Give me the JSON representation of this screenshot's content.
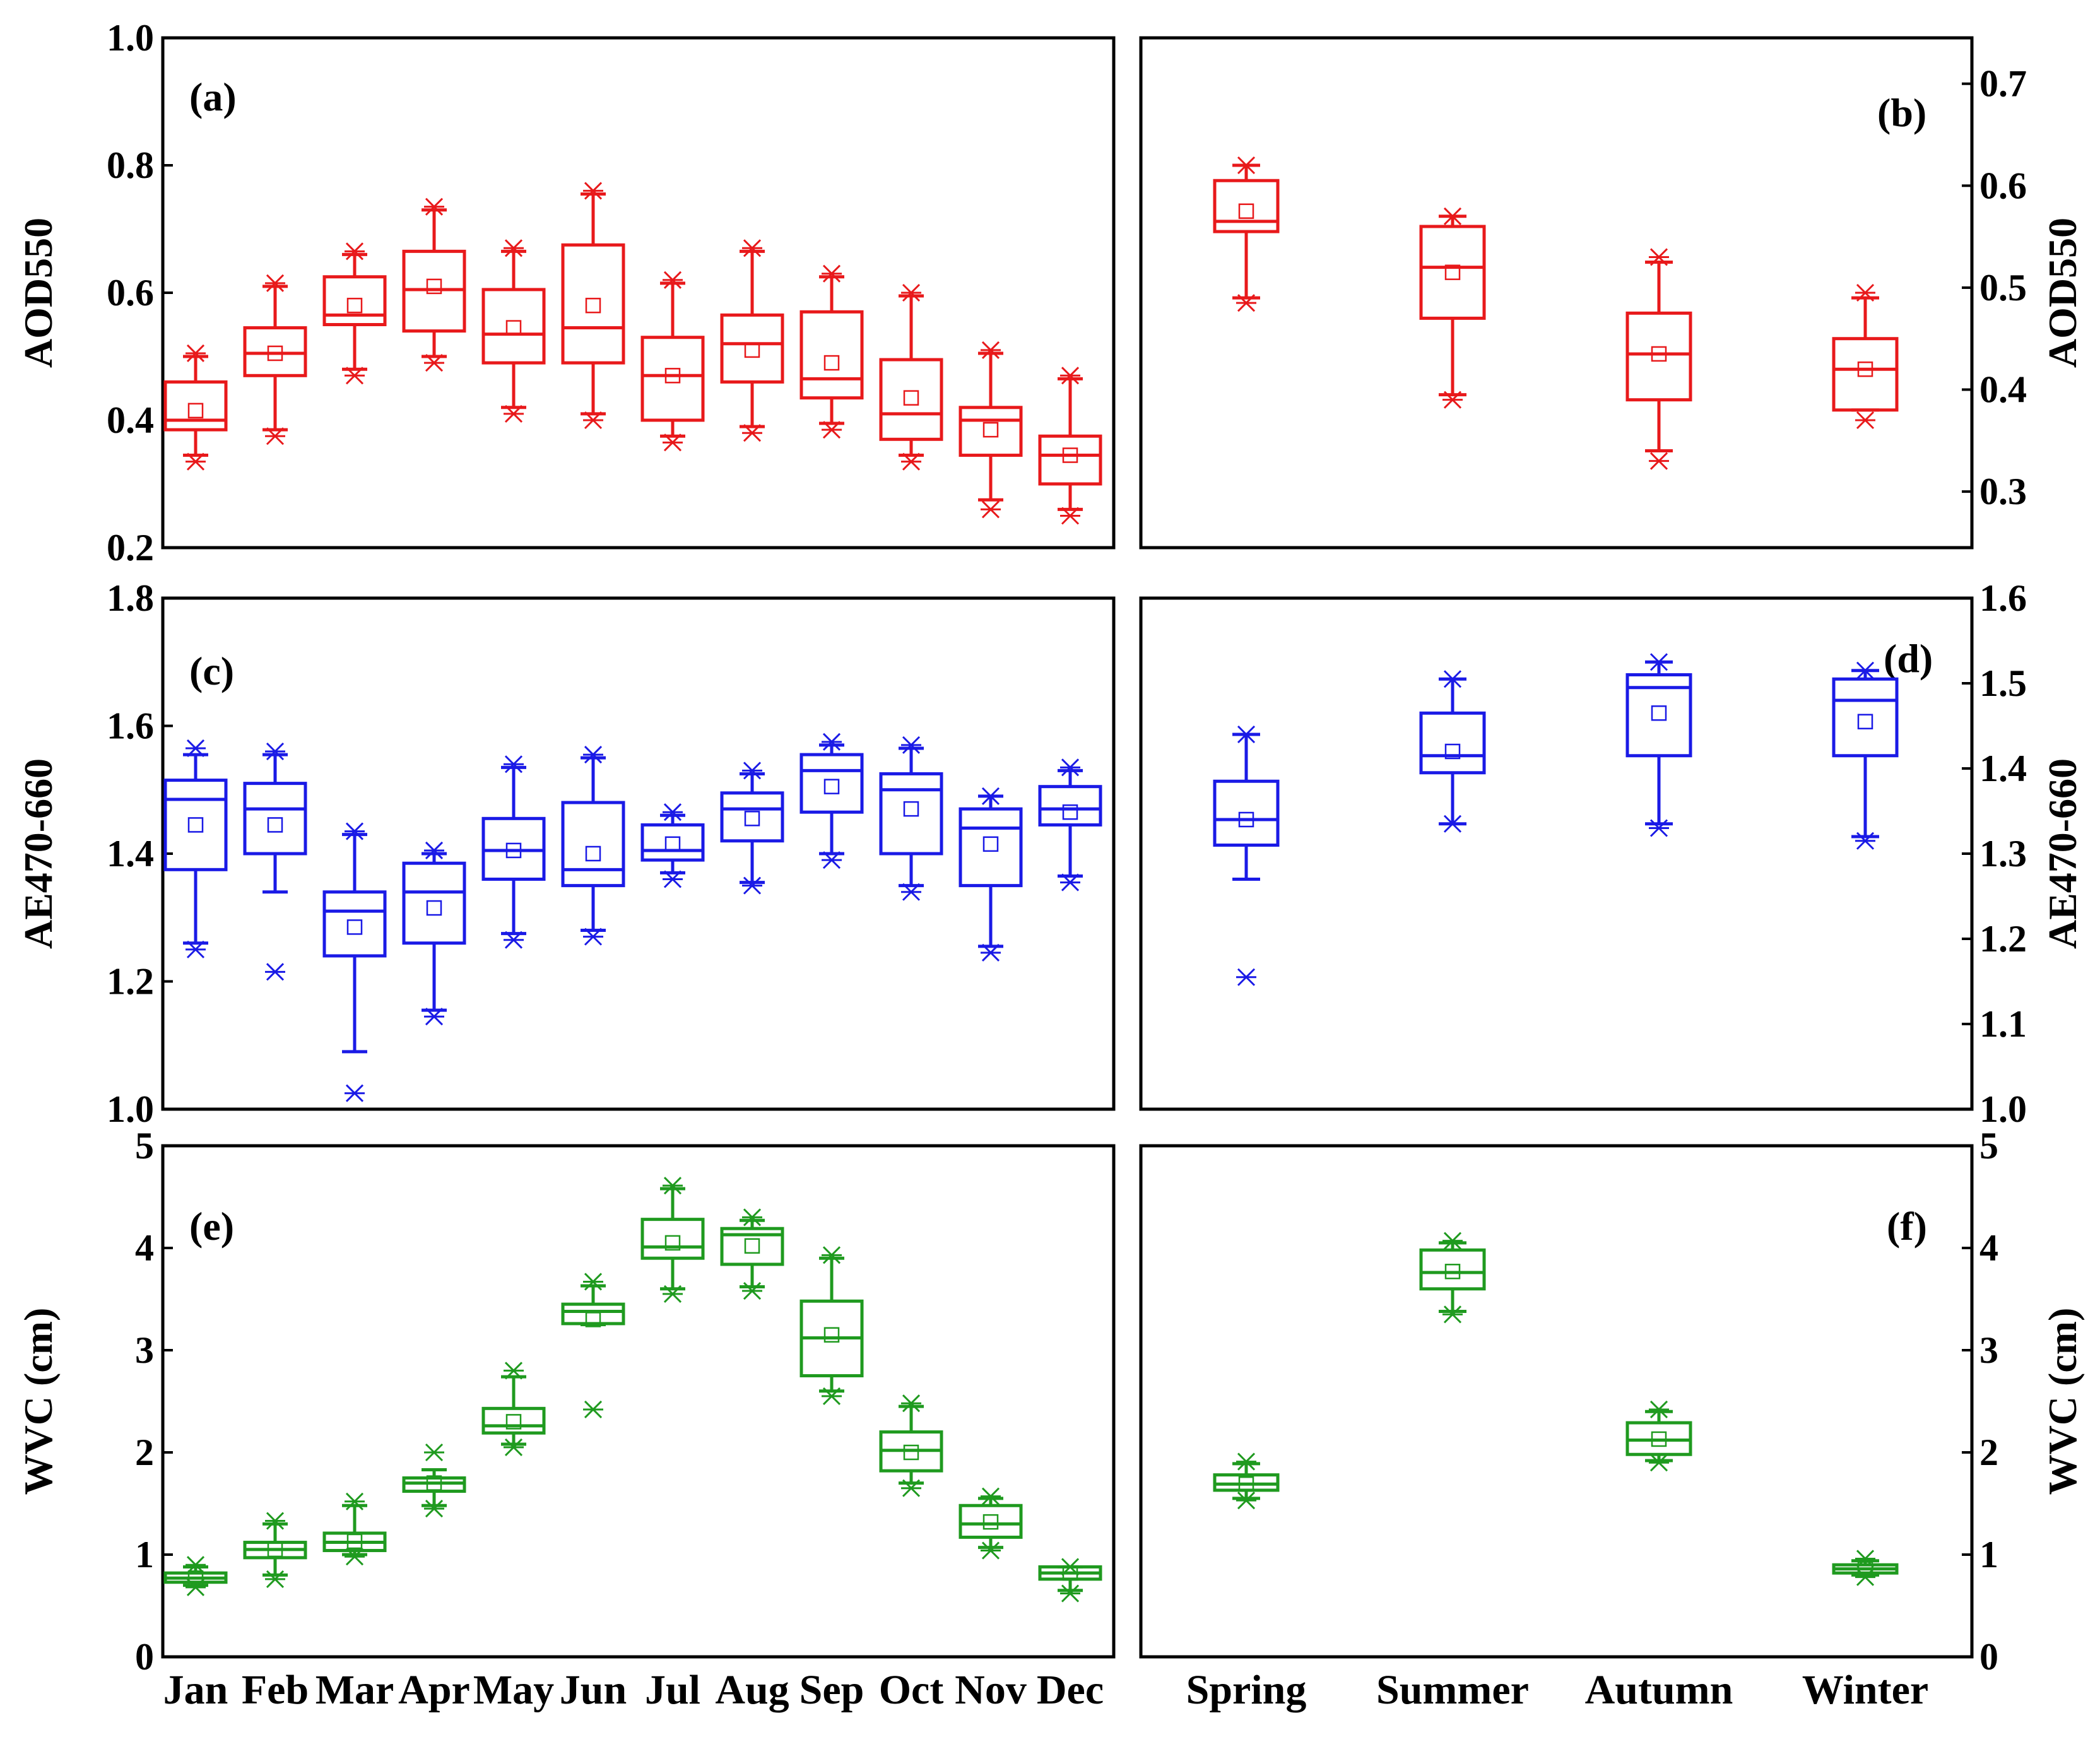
{
  "colors": {
    "a": "#e8191b",
    "c": "#1a1ae6",
    "e": "#1f9a1f",
    "axis": "#000000"
  },
  "chart_data": [
    {
      "id": "a",
      "type": "box",
      "label": "(a)",
      "ylabel": "AOD550",
      "ylim": [
        0.2,
        1.0
      ],
      "yticks": [
        0.2,
        0.4,
        0.6,
        0.8,
        1.0
      ],
      "ytick_labels": [
        "0.2",
        "0.4",
        "0.6",
        "0.8",
        "1.0"
      ],
      "categories": [
        "Jan",
        "Feb",
        "Mar",
        "Apr",
        "May",
        "Jun",
        "Jul",
        "Aug",
        "Sep",
        "Oct",
        "Nov",
        "Dec"
      ],
      "boxes": [
        {
          "wlo": 0.345,
          "q1": 0.385,
          "med": 0.4,
          "q3": 0.46,
          "whi": 0.5,
          "mean": 0.415,
          "outliers": [
            0.335,
            0.505
          ]
        },
        {
          "wlo": 0.385,
          "q1": 0.47,
          "med": 0.505,
          "q3": 0.545,
          "whi": 0.61,
          "mean": 0.505,
          "outliers": [
            0.375,
            0.615
          ]
        },
        {
          "wlo": 0.48,
          "q1": 0.55,
          "med": 0.565,
          "q3": 0.625,
          "whi": 0.66,
          "mean": 0.58,
          "outliers": [
            0.47,
            0.665
          ]
        },
        {
          "wlo": 0.5,
          "q1": 0.54,
          "med": 0.605,
          "q3": 0.665,
          "whi": 0.73,
          "mean": 0.61,
          "outliers": [
            0.49,
            0.735
          ]
        },
        {
          "wlo": 0.42,
          "q1": 0.49,
          "med": 0.535,
          "q3": 0.605,
          "whi": 0.665,
          "mean": 0.545,
          "outliers": [
            0.41,
            0.67
          ]
        },
        {
          "wlo": 0.41,
          "q1": 0.49,
          "med": 0.545,
          "q3": 0.675,
          "whi": 0.755,
          "mean": 0.58,
          "outliers": [
            0.4,
            0.76
          ]
        },
        {
          "wlo": 0.375,
          "q1": 0.4,
          "med": 0.47,
          "q3": 0.53,
          "whi": 0.615,
          "mean": 0.47,
          "outliers": [
            0.365,
            0.62
          ]
        },
        {
          "wlo": 0.39,
          "q1": 0.46,
          "med": 0.52,
          "q3": 0.565,
          "whi": 0.665,
          "mean": 0.51,
          "outliers": [
            0.38,
            0.67
          ]
        },
        {
          "wlo": 0.395,
          "q1": 0.435,
          "med": 0.465,
          "q3": 0.57,
          "whi": 0.625,
          "mean": 0.49,
          "outliers": [
            0.385,
            0.63
          ]
        },
        {
          "wlo": 0.345,
          "q1": 0.37,
          "med": 0.41,
          "q3": 0.495,
          "whi": 0.595,
          "mean": 0.435,
          "outliers": [
            0.335,
            0.6
          ]
        },
        {
          "wlo": 0.275,
          "q1": 0.345,
          "med": 0.4,
          "q3": 0.42,
          "whi": 0.505,
          "mean": 0.385,
          "outliers": [
            0.26,
            0.51
          ]
        },
        {
          "wlo": 0.26,
          "q1": 0.3,
          "med": 0.345,
          "q3": 0.375,
          "whi": 0.465,
          "mean": 0.345,
          "outliers": [
            0.25,
            0.47
          ]
        }
      ]
    },
    {
      "id": "b",
      "type": "box",
      "label": "(b)",
      "ylabel": "AOD550",
      "ylim": [
        0.245,
        0.745
      ],
      "yticks": [
        0.3,
        0.4,
        0.5,
        0.6,
        0.7
      ],
      "ytick_labels": [
        "0.3",
        "0.4",
        "0.5",
        "0.6",
        "0.7"
      ],
      "categories": [
        "Spring",
        "Summer",
        "Autumn",
        "Winter"
      ],
      "boxes": [
        {
          "wlo": 0.49,
          "q1": 0.555,
          "med": 0.565,
          "q3": 0.605,
          "whi": 0.62,
          "mean": 0.575,
          "outliers": [
            0.485,
            0.62
          ]
        },
        {
          "wlo": 0.395,
          "q1": 0.47,
          "med": 0.52,
          "q3": 0.56,
          "whi": 0.57,
          "mean": 0.515,
          "outliers": [
            0.39,
            0.57
          ]
        },
        {
          "wlo": 0.34,
          "q1": 0.39,
          "med": 0.435,
          "q3": 0.475,
          "whi": 0.525,
          "mean": 0.435,
          "outliers": [
            0.33,
            0.53
          ]
        },
        {
          "wlo": 0.38,
          "q1": 0.38,
          "med": 0.42,
          "q3": 0.45,
          "whi": 0.49,
          "mean": 0.42,
          "outliers": [
            0.37,
            0.495
          ]
        }
      ]
    },
    {
      "id": "c",
      "type": "box",
      "label": "(c)",
      "ylabel": "AE470-660",
      "ylim": [
        1.0,
        1.8
      ],
      "yticks": [
        1.0,
        1.2,
        1.4,
        1.6,
        1.8
      ],
      "ytick_labels": [
        "1.0",
        "1.2",
        "1.4",
        "1.6",
        "1.8"
      ],
      "categories": [
        "Jan",
        "Feb",
        "Mar",
        "Apr",
        "May",
        "Jun",
        "Jul",
        "Aug",
        "Sep",
        "Oct",
        "Nov",
        "Dec"
      ],
      "boxes": [
        {
          "wlo": 1.26,
          "q1": 1.375,
          "med": 1.485,
          "q3": 1.515,
          "whi": 1.555,
          "mean": 1.445,
          "outliers": [
            1.25,
            1.565
          ]
        },
        {
          "wlo": 1.34,
          "q1": 1.4,
          "med": 1.47,
          "q3": 1.51,
          "whi": 1.555,
          "mean": 1.445,
          "outliers": [
            1.215,
            1.56
          ]
        },
        {
          "wlo": 1.09,
          "q1": 1.24,
          "med": 1.31,
          "q3": 1.34,
          "whi": 1.43,
          "mean": 1.285,
          "outliers": [
            1.025,
            1.435
          ]
        },
        {
          "wlo": 1.155,
          "q1": 1.26,
          "med": 1.34,
          "q3": 1.385,
          "whi": 1.4,
          "mean": 1.315,
          "outliers": [
            1.145,
            1.405
          ]
        },
        {
          "wlo": 1.275,
          "q1": 1.36,
          "med": 1.405,
          "q3": 1.455,
          "whi": 1.535,
          "mean": 1.405,
          "outliers": [
            1.265,
            1.54
          ]
        },
        {
          "wlo": 1.28,
          "q1": 1.35,
          "med": 1.375,
          "q3": 1.48,
          "whi": 1.55,
          "mean": 1.4,
          "outliers": [
            1.27,
            1.555
          ]
        },
        {
          "wlo": 1.37,
          "q1": 1.39,
          "med": 1.405,
          "q3": 1.445,
          "whi": 1.46,
          "mean": 1.415,
          "outliers": [
            1.36,
            1.465
          ]
        },
        {
          "wlo": 1.355,
          "q1": 1.42,
          "med": 1.47,
          "q3": 1.495,
          "whi": 1.525,
          "mean": 1.455,
          "outliers": [
            1.35,
            1.53
          ]
        },
        {
          "wlo": 1.4,
          "q1": 1.465,
          "med": 1.53,
          "q3": 1.555,
          "whi": 1.57,
          "mean": 1.505,
          "outliers": [
            1.39,
            1.575
          ]
        },
        {
          "wlo": 1.35,
          "q1": 1.4,
          "med": 1.5,
          "q3": 1.525,
          "whi": 1.565,
          "mean": 1.47,
          "outliers": [
            1.34,
            1.57
          ]
        },
        {
          "wlo": 1.255,
          "q1": 1.35,
          "med": 1.44,
          "q3": 1.47,
          "whi": 1.49,
          "mean": 1.415,
          "outliers": [
            1.245,
            1.49
          ]
        },
        {
          "wlo": 1.365,
          "q1": 1.445,
          "med": 1.47,
          "q3": 1.505,
          "whi": 1.53,
          "mean": 1.465,
          "outliers": [
            1.355,
            1.535
          ]
        }
      ]
    },
    {
      "id": "d",
      "type": "box",
      "label": "(d)",
      "ylabel": "AE470-660",
      "ylim": [
        1.0,
        1.6
      ],
      "yticks": [
        1.0,
        1.1,
        1.2,
        1.3,
        1.4,
        1.5,
        1.6
      ],
      "ytick_labels": [
        "1.0",
        "1.1",
        "1.2",
        "1.3",
        "1.4",
        "1.5",
        "1.6"
      ],
      "categories": [
        "Spring",
        "Summer",
        "Autumn",
        "Winter"
      ],
      "boxes": [
        {
          "wlo": 1.27,
          "q1": 1.31,
          "med": 1.34,
          "q3": 1.385,
          "whi": 1.44,
          "mean": 1.34,
          "outliers": [
            1.155,
            1.44
          ]
        },
        {
          "wlo": 1.335,
          "q1": 1.395,
          "med": 1.415,
          "q3": 1.465,
          "whi": 1.505,
          "mean": 1.42,
          "outliers": [
            1.335,
            1.505
          ]
        },
        {
          "wlo": 1.335,
          "q1": 1.415,
          "med": 1.495,
          "q3": 1.51,
          "whi": 1.525,
          "mean": 1.465,
          "outliers": [
            1.33,
            1.525
          ]
        },
        {
          "wlo": 1.32,
          "q1": 1.415,
          "med": 1.48,
          "q3": 1.505,
          "whi": 1.515,
          "mean": 1.455,
          "outliers": [
            1.315,
            1.515
          ]
        }
      ]
    },
    {
      "id": "e",
      "type": "box",
      "label": "(e)",
      "ylabel": "WVC (cm)",
      "ylim": [
        0,
        5
      ],
      "yticks": [
        0,
        1,
        2,
        3,
        4,
        5
      ],
      "ytick_labels": [
        "0",
        "1",
        "2",
        "3",
        "4",
        "5"
      ],
      "categories": [
        "Jan",
        "Feb",
        "Mar",
        "Apr",
        "May",
        "Jun",
        "Jul",
        "Aug",
        "Sep",
        "Oct",
        "Nov",
        "Dec"
      ],
      "xtick_labels": [
        "Jan",
        "Feb",
        "Mar",
        "Apr",
        "May",
        "Jun",
        "Jul",
        "Aug",
        "Sep",
        "Oct",
        "Nov",
        "Dec"
      ],
      "boxes": [
        {
          "wlo": 0.7,
          "q1": 0.73,
          "med": 0.77,
          "q3": 0.82,
          "whi": 0.88,
          "mean": 0.77,
          "outliers": [
            0.68,
            0.9
          ]
        },
        {
          "wlo": 0.8,
          "q1": 0.97,
          "med": 1.05,
          "q3": 1.12,
          "whi": 1.3,
          "mean": 1.05,
          "outliers": [
            0.76,
            1.33
          ]
        },
        {
          "wlo": 1.0,
          "q1": 1.04,
          "med": 1.12,
          "q3": 1.21,
          "whi": 1.48,
          "mean": 1.13,
          "outliers": [
            0.98,
            1.52
          ]
        },
        {
          "wlo": 1.48,
          "q1": 1.62,
          "med": 1.7,
          "q3": 1.75,
          "whi": 1.83,
          "mean": 1.7,
          "outliers": [
            1.45,
            2.0
          ]
        },
        {
          "wlo": 2.08,
          "q1": 2.19,
          "med": 2.26,
          "q3": 2.43,
          "whi": 2.74,
          "mean": 2.3,
          "outliers": [
            2.05,
            2.8
          ]
        },
        {
          "wlo": 3.25,
          "q1": 3.26,
          "med": 3.38,
          "q3": 3.45,
          "whi": 3.63,
          "mean": 3.3,
          "outliers": [
            2.42,
            3.67
          ]
        },
        {
          "wlo": 3.6,
          "q1": 3.9,
          "med": 4.01,
          "q3": 4.28,
          "whi": 4.58,
          "mean": 4.05,
          "outliers": [
            3.55,
            4.61
          ]
        },
        {
          "wlo": 3.62,
          "q1": 3.84,
          "med": 4.13,
          "q3": 4.19,
          "whi": 4.27,
          "mean": 4.02,
          "outliers": [
            3.58,
            4.3
          ]
        },
        {
          "wlo": 2.6,
          "q1": 2.75,
          "med": 3.12,
          "q3": 3.48,
          "whi": 3.9,
          "mean": 3.15,
          "outliers": [
            2.55,
            3.93
          ]
        },
        {
          "wlo": 1.7,
          "q1": 1.82,
          "med": 2.02,
          "q3": 2.2,
          "whi": 2.45,
          "mean": 2.0,
          "outliers": [
            1.65,
            2.48
          ]
        },
        {
          "wlo": 1.07,
          "q1": 1.17,
          "med": 1.3,
          "q3": 1.48,
          "whi": 1.55,
          "mean": 1.32,
          "outliers": [
            1.04,
            1.57
          ]
        },
        {
          "wlo": 0.65,
          "q1": 0.76,
          "med": 0.82,
          "q3": 0.88,
          "whi": 0.88,
          "mean": 0.82,
          "outliers": [
            0.62,
            0.88
          ]
        }
      ]
    },
    {
      "id": "f",
      "type": "box",
      "label": "(f)",
      "ylabel": "WVC (cm)",
      "ylim": [
        0,
        5
      ],
      "yticks": [
        0,
        1,
        2,
        3,
        4,
        5
      ],
      "ytick_labels": [
        "0",
        "1",
        "2",
        "3",
        "4",
        "5"
      ],
      "categories": [
        "Spring",
        "Summer",
        "Autumn",
        "Winter"
      ],
      "xtick_labels": [
        "Spring",
        "Summer",
        "Autumn",
        "Winter"
      ],
      "boxes": [
        {
          "wlo": 1.55,
          "q1": 1.63,
          "med": 1.69,
          "q3": 1.78,
          "whi": 1.89,
          "mean": 1.69,
          "outliers": [
            1.53,
            1.91
          ]
        },
        {
          "wlo": 3.38,
          "q1": 3.6,
          "med": 3.76,
          "q3": 3.98,
          "whi": 4.05,
          "mean": 3.77,
          "outliers": [
            3.35,
            4.07
          ]
        },
        {
          "wlo": 1.92,
          "q1": 1.98,
          "med": 2.12,
          "q3": 2.29,
          "whi": 2.4,
          "mean": 2.13,
          "outliers": [
            1.9,
            2.42
          ]
        },
        {
          "wlo": 0.8,
          "q1": 0.82,
          "med": 0.86,
          "q3": 0.9,
          "whi": 0.94,
          "mean": 0.86,
          "outliers": [
            0.78,
            0.96
          ]
        }
      ]
    }
  ]
}
